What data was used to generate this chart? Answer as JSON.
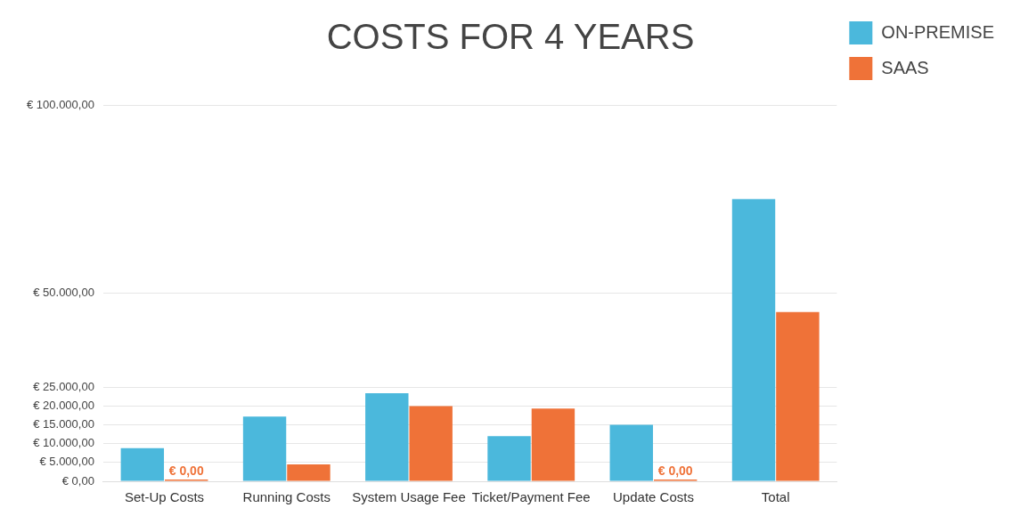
{
  "chart_data": {
    "type": "bar",
    "title": "COSTS FOR 4 YEARS",
    "categories": [
      "Set-Up Costs",
      "Running Costs",
      "System Usage Fee",
      "Ticket/Payment Fee",
      "Update Costs",
      "Total"
    ],
    "series": [
      {
        "name": "ON-PREMISE",
        "color": "#4bb8dc",
        "values": [
          8800,
          17200,
          23400,
          12000,
          15000,
          75000
        ]
      },
      {
        "name": "SAAS",
        "color": "#ef7238",
        "values": [
          0,
          4500,
          20000,
          19300,
          0,
          45000
        ],
        "value_labels": [
          "€ 0,00",
          null,
          null,
          null,
          "€ 0,00",
          null
        ]
      }
    ],
    "ylim": [
      0,
      100000
    ],
    "yticks": [
      {
        "value": 0,
        "label": "€ 0,00"
      },
      {
        "value": 5000,
        "label": "€ 5.000,00"
      },
      {
        "value": 10000,
        "label": "€ 10.000,00"
      },
      {
        "value": 15000,
        "label": "€ 15.000,00"
      },
      {
        "value": 20000,
        "label": "€ 20.000,00"
      },
      {
        "value": 25000,
        "label": "€ 25.000,00"
      },
      {
        "value": 50000,
        "label": "€ 50.000,00"
      },
      {
        "value": 100000,
        "label": "€ 100.000,00"
      }
    ],
    "grid": "y",
    "legend": "right"
  }
}
